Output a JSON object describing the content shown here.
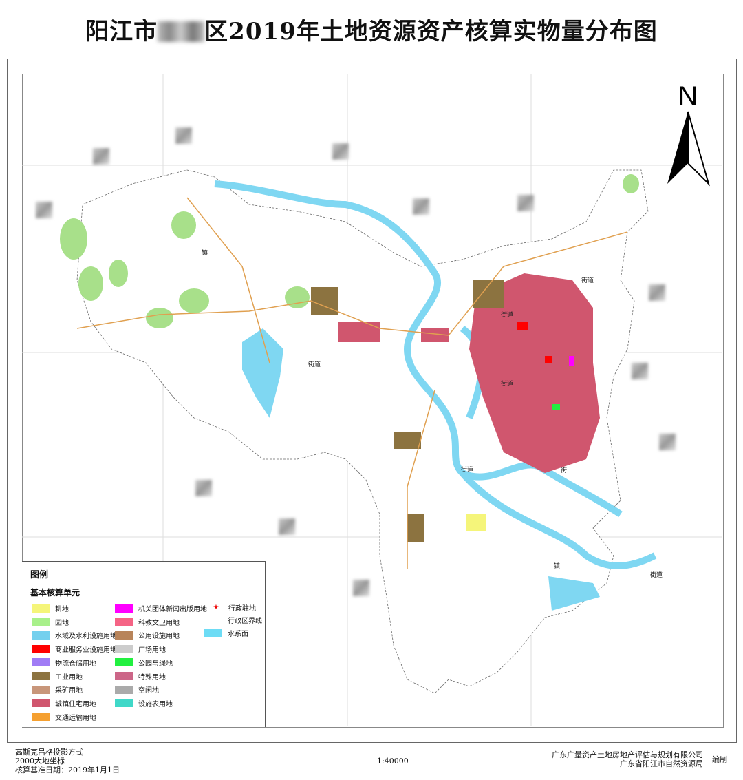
{
  "title": {
    "prefix": "阳江市",
    "suffix": "区2019年土地资源资产核算实物量分布图"
  },
  "north_arrow": {
    "label": "N"
  },
  "map_labels": [
    "街道",
    "街道",
    "街道",
    "街道",
    "街道",
    "街",
    "镇",
    "街道",
    "镇"
  ],
  "legend": {
    "title": "图例",
    "subtitle": "基本核算单元",
    "items": [
      {
        "label": "耕地",
        "color": "#f5f57a"
      },
      {
        "label": "园地",
        "color": "#a8f08a"
      },
      {
        "label": "水域及水利设施用地",
        "color": "#74d0ee"
      },
      {
        "label": "商业服务业设施用地",
        "color": "#ff0000"
      },
      {
        "label": "物流仓储用地",
        "color": "#a07cf5"
      },
      {
        "label": "工业用地",
        "color": "#8c7340"
      },
      {
        "label": "采矿用地",
        "color": "#c8967a"
      },
      {
        "label": "城镇住宅用地",
        "color": "#d0566e"
      },
      {
        "label": "交通运输用地",
        "color": "#f5a030"
      },
      {
        "label": "机关团体新闻出版用地",
        "color": "#ff00ff"
      },
      {
        "label": "科教文卫用地",
        "color": "#f56485"
      },
      {
        "label": "公用设施用地",
        "color": "#b8845a"
      },
      {
        "label": "广场用地",
        "color": "#cccccc"
      },
      {
        "label": "公园与绿地",
        "color": "#22f040"
      },
      {
        "label": "特殊用地",
        "color": "#cc6688"
      },
      {
        "label": "空闲地",
        "color": "#aaaaaa"
      },
      {
        "label": "设施农用地",
        "color": "#40d8c8"
      }
    ],
    "symbols": [
      {
        "label": "行政驻地",
        "icon": "red-star-icon"
      },
      {
        "label": "行政区界线",
        "icon": "dashed-line-icon"
      },
      {
        "label": "水系面",
        "color": "#6ddcf5"
      }
    ]
  },
  "footer": {
    "projection": "高斯克吕格投影方式",
    "datum": "2000大地坐标",
    "base_date": "核算基准日期：2019年1月1日",
    "scale": "1:40000",
    "org1": "广东广量资产土地房地产评估与规划有限公司",
    "org2": "广东省阳江市自然资源局",
    "compiled": "编制"
  }
}
